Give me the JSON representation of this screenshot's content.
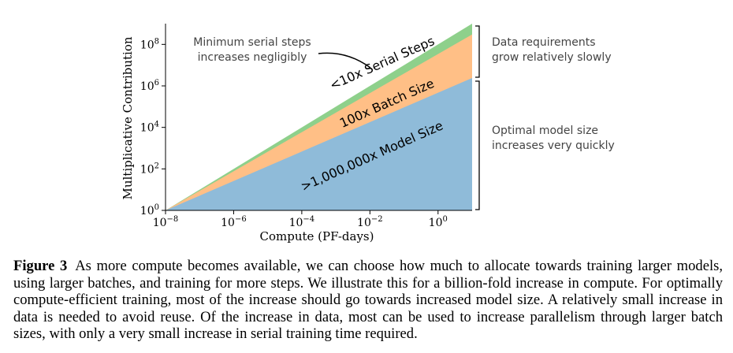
{
  "chart_data": {
    "type": "area",
    "xscale": "log",
    "yscale": "log",
    "xlim": [
      1e-08,
      10
    ],
    "ylim": [
      1,
      1000000000.0
    ],
    "xlabel": "Compute (PF-days)",
    "ylabel": "Multiplicative Contribution",
    "x_ticks": [
      {
        "base": "10",
        "exp": "−8",
        "value": 1e-08
      },
      {
        "base": "10",
        "exp": "−6",
        "value": 1e-06
      },
      {
        "base": "10",
        "exp": "−4",
        "value": 0.0001
      },
      {
        "base": "10",
        "exp": "−2",
        "value": 0.01
      },
      {
        "base": "10",
        "exp": "0",
        "value": 1
      }
    ],
    "y_ticks": [
      {
        "base": "10",
        "exp": "0",
        "value": 1
      },
      {
        "base": "10",
        "exp": "2",
        "value": 100
      },
      {
        "base": "10",
        "exp": "4",
        "value": 10000
      },
      {
        "base": "10",
        "exp": "6",
        "value": 1000000
      },
      {
        "base": "10",
        "exp": "8",
        "value": 100000000
      }
    ],
    "x": [
      1e-08,
      10
    ],
    "series": [
      {
        "name": "Model Size",
        "label": ">1,000,000x Model Size",
        "values": [
          1,
          2400000.0
        ],
        "color": "#8fbbd9"
      },
      {
        "name": "Batch Size",
        "label": "100x Batch Size",
        "values": [
          1,
          300000000.0
        ],
        "color": "#ffbf86"
      },
      {
        "name": "Serial Steps",
        "label": "<10x Serial Steps",
        "values": [
          1,
          1000000000.0
        ],
        "color": "#8ed08b"
      }
    ],
    "annotations": {
      "serial_note": [
        "Minimum serial steps",
        "increases negligibly"
      ],
      "data_note": [
        "Data requirements",
        "grow relatively slowly"
      ],
      "model_note": [
        "Optimal model size",
        "increases very quickly"
      ]
    }
  },
  "caption": {
    "label": "Figure 3",
    "text": "As more compute becomes available, we can choose how much to allocate towards training larger models, using larger batches, and training for more steps. We illustrate this for a billion-fold increase in compute. For optimally compute-efficient training, most of the increase should go towards increased model size. A relatively small increase in data is needed to avoid reuse. Of the increase in data, most can be used to increase parallelism through larger batch sizes, with only a very small increase in serial training time required."
  }
}
